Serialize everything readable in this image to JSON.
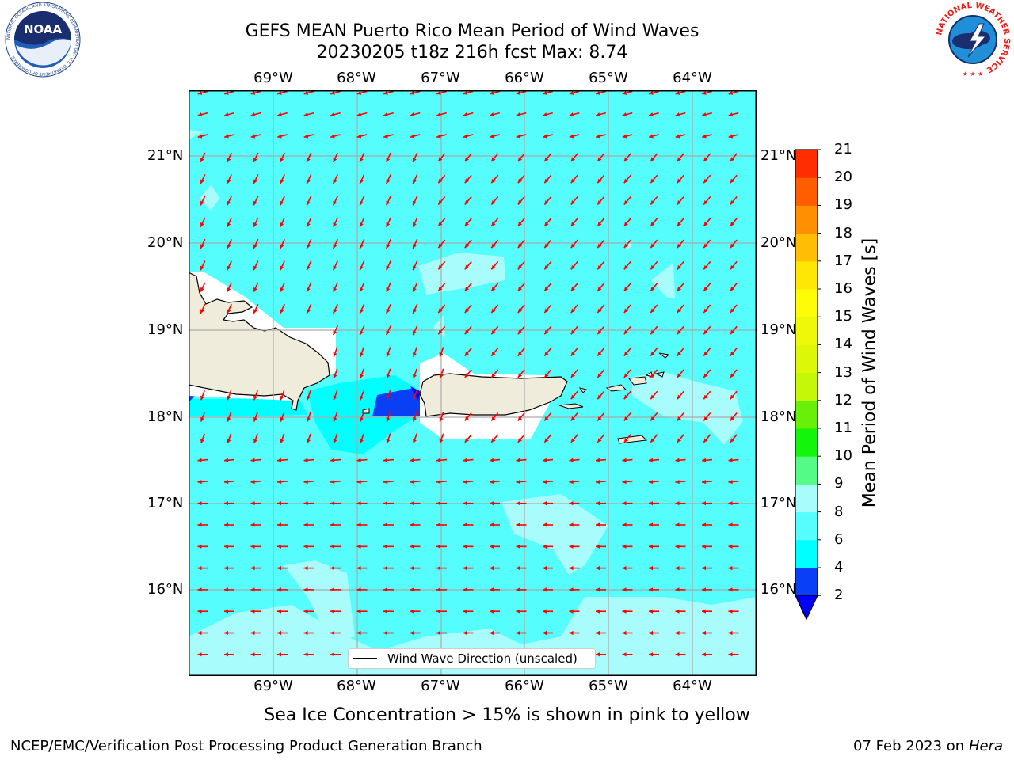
{
  "title": {
    "line1": "GEFS MEAN Puerto Rico Mean Period of Wind Waves",
    "line2": "20230205 t18z 216h fcst   Max: 8.74"
  },
  "logos": {
    "left": "noaa-logo",
    "left_text": "NOAA",
    "left_ring": "NATIONAL OCEANIC AND ATMOSPHERIC ADMINISTRATION · U.S. DEPARTMENT OF COMMERCE",
    "right": "national-weather-service-logo",
    "right_ring": "NATIONAL WEATHER SERVICE"
  },
  "map": {
    "lon_labels": [
      "69°W",
      "68°W",
      "67°W",
      "66°W",
      "65°W",
      "64°W"
    ],
    "lat_labels": [
      "21°N",
      "20°N",
      "19°N",
      "18°N",
      "17°N",
      "16°N"
    ],
    "lon_range": [
      -70.0,
      -63.25
    ],
    "lat_range": [
      15.0,
      21.75
    ],
    "land_color": "#efecdc",
    "coast_color": "#000000",
    "grid_color": "#aaaaaa",
    "arrow_color": "#ff0000",
    "arrow_direction": "from east-northeast toward west-southwest",
    "legend_label": "Wind Wave Direction (unscaled)"
  },
  "colorbar": {
    "label": "Mean Period of Wind Waves [s]",
    "ticks": [
      "2",
      "4",
      "6",
      "8",
      "9",
      "10",
      "11",
      "12",
      "13",
      "14",
      "15",
      "16",
      "17",
      "18",
      "19",
      "20",
      "21"
    ],
    "colors": [
      "#0a40f5",
      "#00ffff",
      "#55fdfd",
      "#a8fdfc",
      "#55fb87",
      "#14f50c",
      "#68ef0a",
      "#c4f708",
      "#dcf808",
      "#eef808",
      "#fffc08",
      "#ffe705",
      "#ffbe04",
      "#ff9002",
      "#ff5d00",
      "#ff2d00",
      "#fe0000"
    ],
    "under_color": "#0000ff",
    "extend": "min"
  },
  "seaice_note": "Sea Ice Concentration > 15% is shown in pink to yellow",
  "footer": {
    "left": "NCEP/EMC/Verification Post Processing Product Generation Branch",
    "right_date": "07 Feb 2023 on",
    "right_machine": "Hera"
  }
}
